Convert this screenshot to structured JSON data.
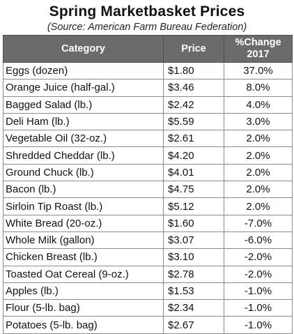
{
  "title": "Spring Marketbasket Prices",
  "subtitle": "(Source: American Farm Bureau Federation)",
  "table": {
    "headers": [
      "Category",
      "Price",
      "%Change 2017"
    ],
    "rows": [
      [
        "Eggs (dozen)",
        "$1.80",
        "37.0%"
      ],
      [
        "Orange Juice (half-gal.)",
        "$3.46",
        "8.0%"
      ],
      [
        "Bagged Salad (lb.)",
        "$2.42",
        "4.0%"
      ],
      [
        "Deli Ham (lb.)",
        "$5.59",
        "3.0%"
      ],
      [
        "Vegetable Oil (32-oz.)",
        "$2.61",
        "2.0%"
      ],
      [
        "Shredded Cheddar (lb.)",
        "$4.20",
        "2.0%"
      ],
      [
        "Ground Chuck (lb.)",
        "$4.01",
        "2.0%"
      ],
      [
        "Bacon (lb.)",
        "$4.75",
        "2.0%"
      ],
      [
        "Sirloin Tip Roast (lb.)",
        "$5.12",
        "2.0%"
      ],
      [
        "White Bread (20-oz.)",
        "$1.60",
        "-7.0%"
      ],
      [
        "Whole Milk (gallon)",
        "$3.07",
        "-6.0%"
      ],
      [
        "Chicken Breast (lb.)",
        "$3.10",
        "-2.0%"
      ],
      [
        "Toasted Oat Cereal (9-oz.)",
        "$2.78",
        "-2.0%"
      ],
      [
        "Apples (lb.)",
        "$1.53",
        "-1.0%"
      ],
      [
        "Flour (5-lb. bag)",
        "$2.34",
        "-1.0%"
      ],
      [
        "Potatoes (5-lb. bag)",
        "$2.67",
        "-1.0%"
      ]
    ]
  },
  "colors": {
    "header_bg": "#6b6b6b",
    "header_text": "#ffffff",
    "border": "#8a8a8a"
  }
}
